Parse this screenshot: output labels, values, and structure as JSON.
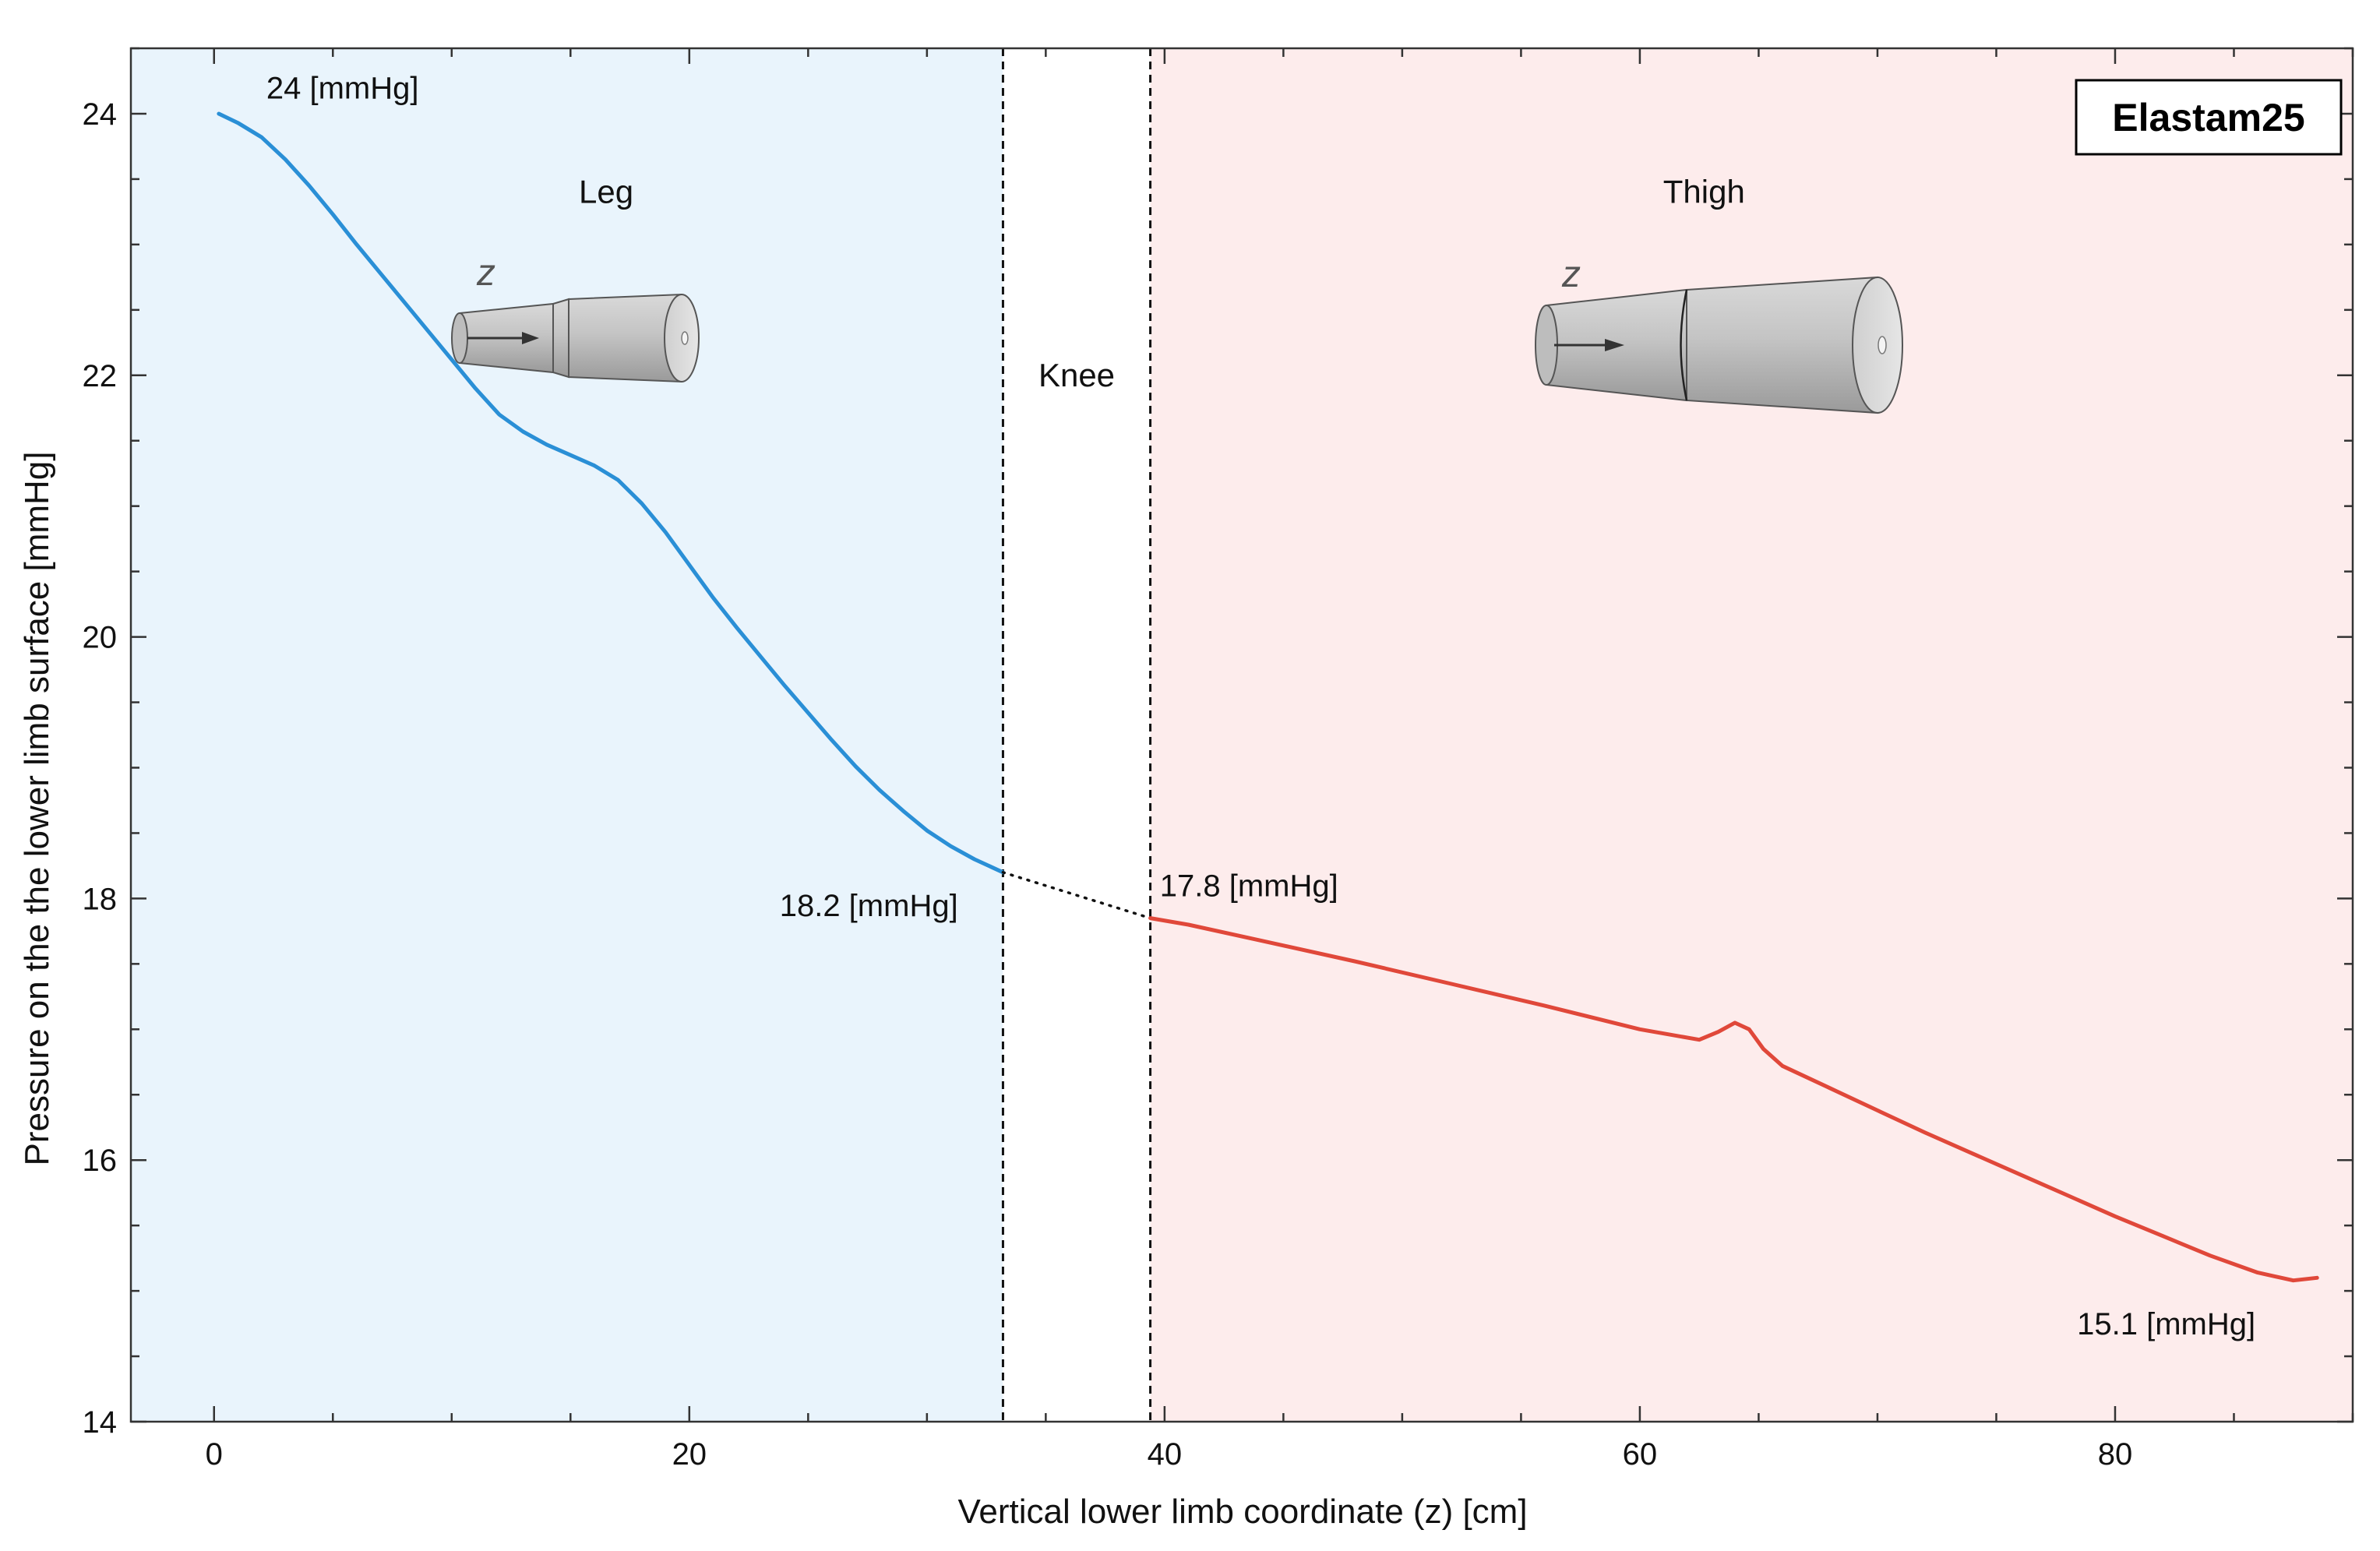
{
  "chart_data": {
    "type": "line",
    "panel_title": "Elastam25",
    "xlabel": "Vertical lower limb coordinate (z) [cm]",
    "ylabel": "Pressure on the the lower limb surface [mmHg]",
    "xlim": [
      -3.5,
      90
    ],
    "ylim": [
      14,
      24.5
    ],
    "x_ticks": [
      0,
      20,
      40,
      60,
      80
    ],
    "y_ticks": [
      14,
      16,
      18,
      20,
      22,
      24
    ],
    "x_minor_step": 5,
    "y_minor_step": 0.5,
    "grid": false,
    "regions": [
      {
        "label": "Leg",
        "x_range": [
          -3.5,
          33.2
        ],
        "color": "#e9f4fc"
      },
      {
        "label": "Knee",
        "x_range": [
          33.2,
          39.4
        ],
        "color": "#ffffff"
      },
      {
        "label": "Thigh",
        "x_range": [
          39.4,
          90
        ],
        "color": "#fdecec"
      }
    ],
    "boundaries": [
      33.2,
      39.4
    ],
    "series": [
      {
        "region": "Leg",
        "color": "#2a8fd6",
        "style": "solid",
        "x": [
          0.2,
          1,
          2,
          3,
          4,
          5,
          6,
          7,
          8,
          9,
          10,
          11,
          12,
          13,
          14,
          15,
          16,
          17,
          18,
          19,
          20,
          21,
          22,
          23,
          24,
          25,
          26,
          27,
          28,
          29,
          30,
          31,
          32,
          33.2
        ],
        "values": [
          24.0,
          23.93,
          23.82,
          23.65,
          23.45,
          23.23,
          23.0,
          22.78,
          22.56,
          22.34,
          22.12,
          21.9,
          21.7,
          21.57,
          21.47,
          21.39,
          21.31,
          21.2,
          21.02,
          20.8,
          20.55,
          20.3,
          20.07,
          19.85,
          19.63,
          19.42,
          19.21,
          19.01,
          18.83,
          18.67,
          18.52,
          18.4,
          18.3,
          18.2
        ]
      },
      {
        "region": "Knee",
        "color": "#111111",
        "style": "dotted",
        "x": [
          33.2,
          39.4
        ],
        "values": [
          18.2,
          17.85
        ]
      },
      {
        "region": "Thigh",
        "color": "#e0483a",
        "style": "solid",
        "x": [
          39.4,
          41,
          44,
          48,
          52,
          56,
          60,
          62.5,
          63.3,
          64.0,
          64.6,
          65.2,
          66.0,
          68,
          70,
          72,
          74,
          76,
          78,
          80,
          82,
          84,
          86,
          87.5,
          88.5
        ],
        "values": [
          17.85,
          17.8,
          17.68,
          17.52,
          17.35,
          17.18,
          17.0,
          16.92,
          16.98,
          17.05,
          17.0,
          16.85,
          16.72,
          16.55,
          16.38,
          16.21,
          16.05,
          15.89,
          15.73,
          15.57,
          15.42,
          15.27,
          15.14,
          15.08,
          15.1
        ]
      }
    ],
    "annotations": [
      {
        "text": "24  [mmHg]",
        "x": 2.2,
        "y": 24.2
      },
      {
        "text": "18.2  [mmHg]",
        "x": 23.8,
        "y": 17.95
      },
      {
        "text": "17.8  [mmHg]",
        "x": 39.8,
        "y": 18.1
      },
      {
        "text": "15.1  [mmHg]",
        "x": 78.4,
        "y": 14.75
      }
    ],
    "region_labels": [
      {
        "text": "Leg",
        "x": 16.5,
        "y": 23.4
      },
      {
        "text": "Knee",
        "x": 36.3,
        "y": 22.0
      },
      {
        "text": "Thigh",
        "x": 62.7,
        "y": 23.4
      }
    ],
    "illustration_label": "z"
  }
}
